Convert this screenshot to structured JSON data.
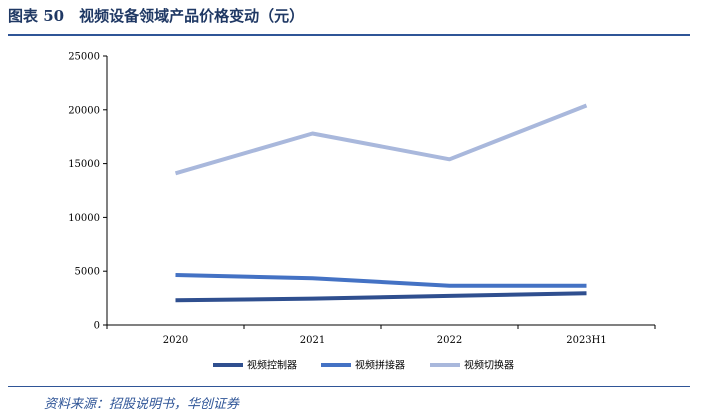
{
  "header": {
    "title": "图表 50　视频设备领域产品价格变动（元）"
  },
  "footer": {
    "source": "资料来源：招股说明书，华创证券"
  },
  "chart_data": {
    "type": "line",
    "categories": [
      "2020",
      "2021",
      "2022",
      "2023H1"
    ],
    "ylim": [
      0,
      25000
    ],
    "yticks": [
      0,
      5000,
      10000,
      15000,
      20000,
      25000
    ],
    "grid": false,
    "legend_position": "bottom",
    "series": [
      {
        "name": "视频控制器",
        "color": "#2f4f8f",
        "values": [
          2300,
          2450,
          2700,
          2950
        ]
      },
      {
        "name": "视频拼接器",
        "color": "#4472c4",
        "values": [
          4650,
          4350,
          3650,
          3650
        ]
      },
      {
        "name": "视频切换器",
        "color": "#a9b8dc",
        "values": [
          14100,
          17800,
          15400,
          20400
        ]
      }
    ]
  }
}
